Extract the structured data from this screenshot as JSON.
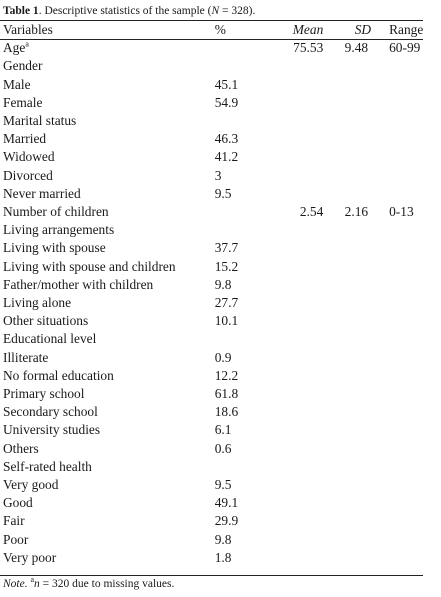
{
  "caption": {
    "label": "Table 1",
    "text": ". Descriptive statistics of the sample (",
    "n_symbol": "N",
    "n_value": " = 328)."
  },
  "headers": {
    "variables": "Variables",
    "percent": "%",
    "mean": "Mean",
    "sd": "SD",
    "range": "Range"
  },
  "rows": [
    {
      "variable": "Age",
      "sup": "a",
      "percent": "",
      "mean": "75.53",
      "sd": "9.48",
      "range": "60-99"
    },
    {
      "variable": "Gender",
      "percent": "",
      "mean": "",
      "sd": "",
      "range": ""
    },
    {
      "variable": "Male",
      "percent": "45.1",
      "mean": "",
      "sd": "",
      "range": ""
    },
    {
      "variable": "Female",
      "percent": "54.9",
      "mean": "",
      "sd": "",
      "range": ""
    },
    {
      "variable": "Marital status",
      "percent": "",
      "mean": "",
      "sd": "",
      "range": ""
    },
    {
      "variable": "Married",
      "percent": "46.3",
      "mean": "",
      "sd": "",
      "range": ""
    },
    {
      "variable": "Widowed",
      "percent": "41.2",
      "mean": "",
      "sd": "",
      "range": ""
    },
    {
      "variable": "Divorced",
      "percent": "3",
      "mean": "",
      "sd": "",
      "range": ""
    },
    {
      "variable": "Never married",
      "percent": "9.5",
      "mean": "",
      "sd": "",
      "range": ""
    },
    {
      "variable": "Number of children",
      "percent": "",
      "mean": "2.54",
      "sd": "2.16",
      "range": "0-13"
    },
    {
      "variable": "Living arrangements",
      "percent": "",
      "mean": "",
      "sd": "",
      "range": ""
    },
    {
      "variable": "Living with spouse",
      "percent": "37.7",
      "mean": "",
      "sd": "",
      "range": ""
    },
    {
      "variable": "Living with spouse and children",
      "percent": "15.2",
      "mean": "",
      "sd": "",
      "range": ""
    },
    {
      "variable": "Father/mother with children",
      "percent": "9.8",
      "mean": "",
      "sd": "",
      "range": ""
    },
    {
      "variable": "Living alone",
      "percent": "27.7",
      "mean": "",
      "sd": "",
      "range": ""
    },
    {
      "variable": "Other situations",
      "percent": "10.1",
      "mean": "",
      "sd": "",
      "range": ""
    },
    {
      "variable": "Educational level",
      "percent": "",
      "mean": "",
      "sd": "",
      "range": ""
    },
    {
      "variable": "Illiterate",
      "percent": "0.9",
      "mean": "",
      "sd": "",
      "range": ""
    },
    {
      "variable": "No formal education",
      "percent": "12.2",
      "mean": "",
      "sd": "",
      "range": ""
    },
    {
      "variable": "Primary school",
      "percent": "61.8",
      "mean": "",
      "sd": "",
      "range": ""
    },
    {
      "variable": "Secondary school",
      "percent": "18.6",
      "mean": "",
      "sd": "",
      "range": ""
    },
    {
      "variable": "University studies",
      "percent": "6.1",
      "mean": "",
      "sd": "",
      "range": ""
    },
    {
      "variable": "Others",
      "percent": "0.6",
      "mean": "",
      "sd": "",
      "range": ""
    },
    {
      "variable": "Self-rated health",
      "percent": "",
      "mean": "",
      "sd": "",
      "range": ""
    },
    {
      "variable": "Very good",
      "percent": "9.5",
      "mean": "",
      "sd": "",
      "range": ""
    },
    {
      "variable": "Good",
      "percent": "49.1",
      "mean": "",
      "sd": "",
      "range": ""
    },
    {
      "variable": "Fair",
      "percent": "29.9",
      "mean": "",
      "sd": "",
      "range": ""
    },
    {
      "variable": "Poor",
      "percent": "9.8",
      "mean": "",
      "sd": "",
      "range": ""
    },
    {
      "variable": "Very poor",
      "percent": "1.8",
      "mean": "",
      "sd": "",
      "range": ""
    }
  ],
  "note": {
    "label": "Note.",
    "sup": "a",
    "n_symbol": "n",
    "text": " = 320 due to missing values."
  }
}
